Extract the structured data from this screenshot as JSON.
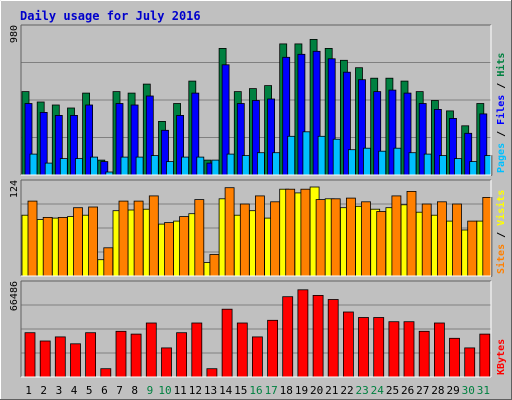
{
  "chart_data": {
    "type": "bar",
    "title": "Daily usage for July 2016",
    "categories": [
      "1",
      "2",
      "3",
      "4",
      "5",
      "6",
      "7",
      "8",
      "9",
      "10",
      "11",
      "12",
      "13",
      "14",
      "15",
      "16",
      "17",
      "18",
      "19",
      "20",
      "21",
      "22",
      "23",
      "24",
      "25",
      "26",
      "27",
      "28",
      "29",
      "30",
      "31"
    ],
    "weekend_days": [
      "9",
      "10",
      "16",
      "17",
      "23",
      "24",
      "30",
      "31"
    ],
    "panels": [
      {
        "ymax_label": "980",
        "ymax": 980,
        "legend": [
          {
            "text": "Pages",
            "color": "#00c0ff"
          },
          {
            "text": " / ",
            "color": "#000000"
          },
          {
            "text": "Files",
            "color": "#0000ff"
          },
          {
            "text": " / ",
            "color": "#000000"
          },
          {
            "text": "Hits",
            "color": "#008040"
          }
        ],
        "series": [
          {
            "name": "Hits",
            "color": "#008040",
            "values": [
              560,
              490,
              470,
              450,
              550,
              100,
              560,
              550,
              610,
              360,
              480,
              630,
              100,
              850,
              560,
              580,
              600,
              880,
              880,
              910,
              850,
              770,
              720,
              650,
              650,
              630,
              560,
              500,
              430,
              330,
              480
            ]
          },
          {
            "name": "Files",
            "color": "#0000ff",
            "values": [
              480,
              420,
              400,
              400,
              470,
              90,
              480,
              470,
              530,
              300,
              400,
              550,
              80,
              740,
              480,
              500,
              510,
              790,
              810,
              830,
              780,
              690,
              640,
              560,
              570,
              550,
              480,
              440,
              380,
              280,
              410
            ]
          },
          {
            "name": "Pages",
            "color": "#00c0ff",
            "values": [
              140,
              80,
              110,
              110,
              120,
              20,
              120,
              120,
              130,
              90,
              120,
              120,
              100,
              140,
              130,
              150,
              150,
              260,
              290,
              260,
              240,
              170,
              180,
              160,
              180,
              150,
              140,
              130,
              110,
              90,
              130
            ]
          }
        ]
      },
      {
        "ymax_label": "124",
        "ymax": 124,
        "legend": [
          {
            "text": "Sites",
            "color": "#ff8000"
          },
          {
            "text": " / ",
            "color": "#000000"
          },
          {
            "text": "Visits",
            "color": "#ffff00"
          }
        ],
        "series": [
          {
            "name": "Visits",
            "color": "#ffff00",
            "values": [
              82,
              76,
              78,
              80,
              82,
              22,
              88,
              89,
              90,
              70,
              74,
              84,
              18,
              104,
              82,
              88,
              78,
              117,
              112,
              120,
              104,
              92,
              94,
              90,
              92,
              96,
              86,
              82,
              74,
              62,
              74
            ]
          },
          {
            "name": "Sites",
            "color": "#ff8000",
            "values": [
              101,
              79,
              79,
              92,
              93,
              38,
              101,
              101,
              108,
              72,
              80,
              103,
              29,
              119,
              97,
              108,
              100,
              117,
              117,
              103,
              104,
              105,
              100,
              87,
              108,
              114,
              97,
              100,
              97,
              74,
              106
            ]
          }
        ]
      },
      {
        "ymax_label": "66486",
        "ymax": 66486,
        "legend": [
          {
            "text": "KBytes",
            "color": "#ff0000"
          }
        ],
        "series": [
          {
            "name": "KBytes",
            "color": "#ff0000",
            "values": [
              32000,
              26000,
              29000,
              24000,
              32000,
              6000,
              33000,
              31000,
              39000,
              21000,
              32000,
              39000,
              6000,
              49000,
              39000,
              29000,
              41000,
              58000,
              63000,
              59000,
              56000,
              47000,
              43000,
              43000,
              40000,
              40000,
              33000,
              39000,
              28000,
              21000,
              31000
            ]
          }
        ]
      }
    ]
  }
}
